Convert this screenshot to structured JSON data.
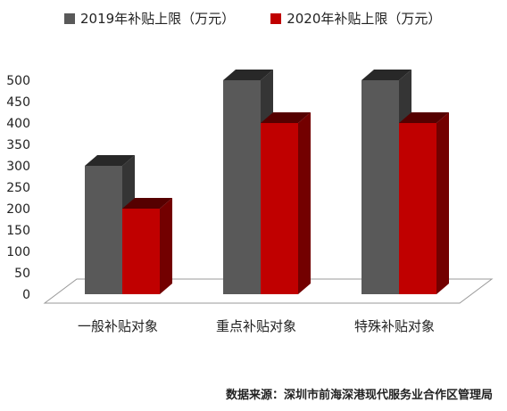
{
  "chart_data": {
    "type": "bar",
    "categories": [
      "一般补贴对象",
      "重点补贴对象",
      "特殊补贴对象"
    ],
    "series": [
      {
        "name": "2019年补贴上限（万元）",
        "values": [
          300,
          500,
          500
        ]
      },
      {
        "name": "2020年补贴上限（万元）",
        "values": [
          200,
          400,
          400
        ]
      }
    ],
    "ylim": [
      0,
      500
    ],
    "yticks": [
      "0",
      "50",
      "100",
      "150",
      "200",
      "250",
      "300",
      "350",
      "400",
      "450",
      "500"
    ],
    "legend_position": "top",
    "grid": false,
    "style_3d": true
  },
  "colors": {
    "series_2019": "#595959",
    "series_2020": "#c00000"
  },
  "source_note": "数据来源：深圳市前海深港现代服务业合作区管理局"
}
